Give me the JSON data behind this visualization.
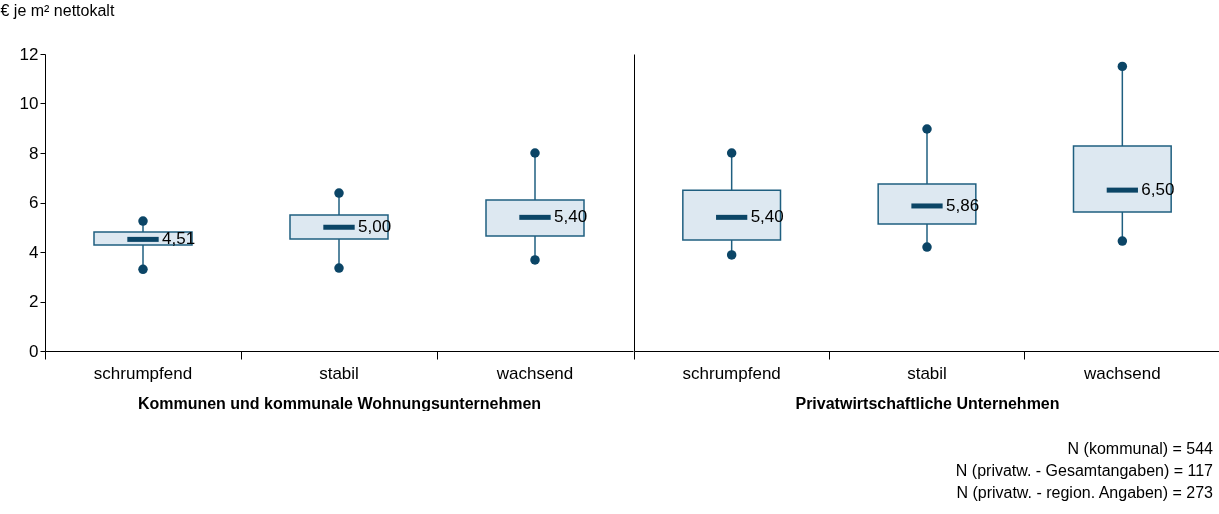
{
  "chart_data": [
    {
      "type": "box",
      "ylabel": "€ je m² nettokalt",
      "xlabel": "Kommunen und kommunale Wohnungsunternehmen",
      "categories": [
        "schrumpfend",
        "stabil",
        "wachsend"
      ],
      "boxes": [
        {
          "low": 3.3,
          "q1": 4.28,
          "median": 4.51,
          "q3": 4.81,
          "high": 5.25
        },
        {
          "low": 3.35,
          "q1": 4.53,
          "median": 5.0,
          "q3": 5.49,
          "high": 6.38
        },
        {
          "low": 3.68,
          "q1": 4.65,
          "median": 5.4,
          "q3": 6.1,
          "high": 8.0
        }
      ],
      "value_labels": [
        "4,51",
        "5,00",
        "5,40"
      ],
      "ylim": [
        0,
        12
      ],
      "yticks": [
        0,
        2,
        4,
        6,
        8,
        10,
        12
      ],
      "grid": false
    },
    {
      "type": "box",
      "xlabel": "Privatwirtschaftliche Unternehmen",
      "categories": [
        "schrumpfend",
        "stabil",
        "wachsend"
      ],
      "boxes": [
        {
          "low": 3.88,
          "q1": 4.48,
          "median": 5.4,
          "q3": 6.5,
          "high": 8.0
        },
        {
          "low": 4.2,
          "q1": 5.13,
          "median": 5.86,
          "q3": 6.75,
          "high": 8.97
        },
        {
          "low": 4.44,
          "q1": 5.62,
          "median": 6.5,
          "q3": 8.28,
          "high": 11.5
        }
      ],
      "value_labels": [
        "5,40",
        "5,86",
        "6,50"
      ],
      "ylim": [
        0,
        12
      ],
      "yticks": [
        0,
        2,
        4,
        6,
        8,
        10,
        12
      ],
      "tick_labels": "x",
      "grid": false,
      "annotations": [
        "N (kommunal) = 544",
        "N (privatw. - Gesamtangaben) = 117",
        "N (privatw. - region. Angaben) = 273"
      ]
    }
  ]
}
